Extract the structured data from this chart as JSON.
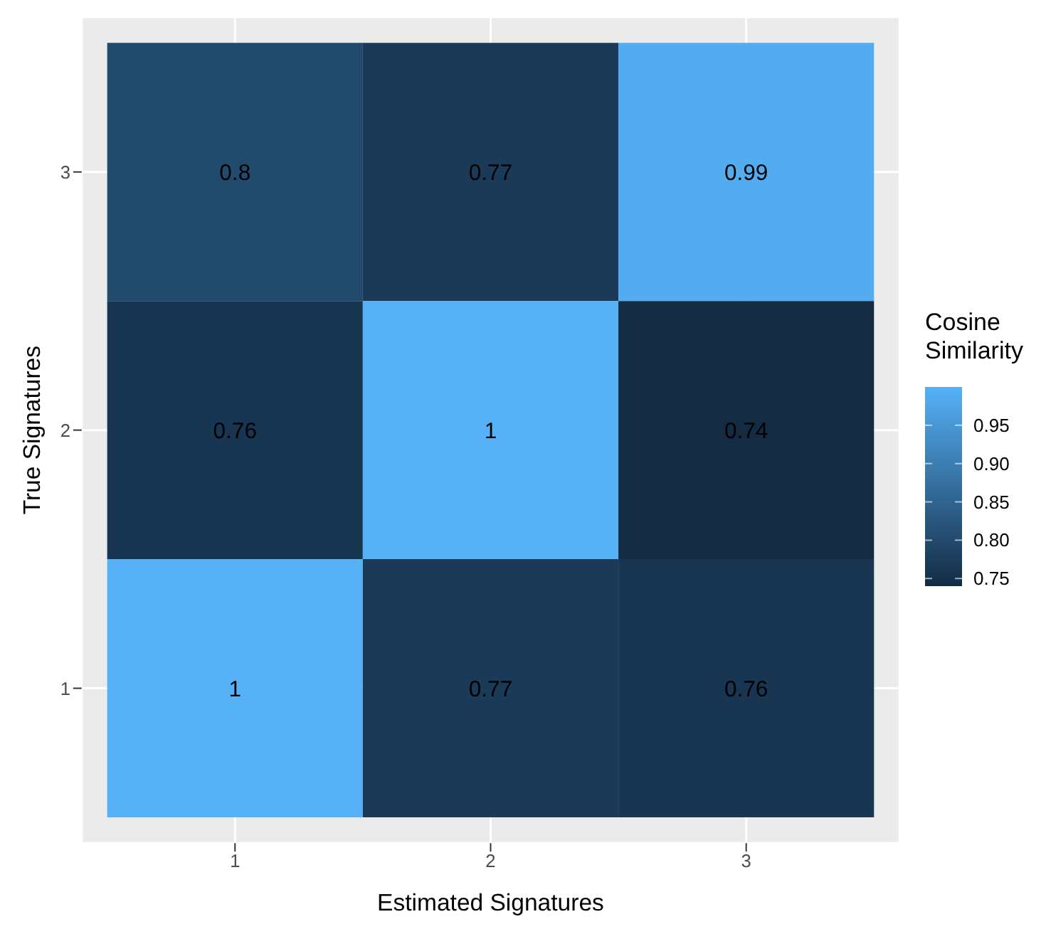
{
  "chart_data": {
    "type": "heatmap",
    "xlabel": "Estimated Signatures",
    "ylabel": "True Signatures",
    "legend_title": "Cosine Similarity",
    "categories": [
      "1",
      "2",
      "3"
    ],
    "y_categories": [
      "3",
      "2",
      "1"
    ],
    "cells": [
      [
        0.8,
        0.77,
        0.99
      ],
      [
        0.76,
        1,
        0.74
      ],
      [
        1,
        0.77,
        0.76
      ]
    ],
    "data_labels": true,
    "clim": [
      0.74,
      1
    ],
    "cticks": [
      0.75,
      {
        "value": 0.8,
        "label": "0.80"
      },
      0.85,
      {
        "value": 0.9,
        "label": "0.90"
      },
      0.95
    ],
    "grid": true
  }
}
